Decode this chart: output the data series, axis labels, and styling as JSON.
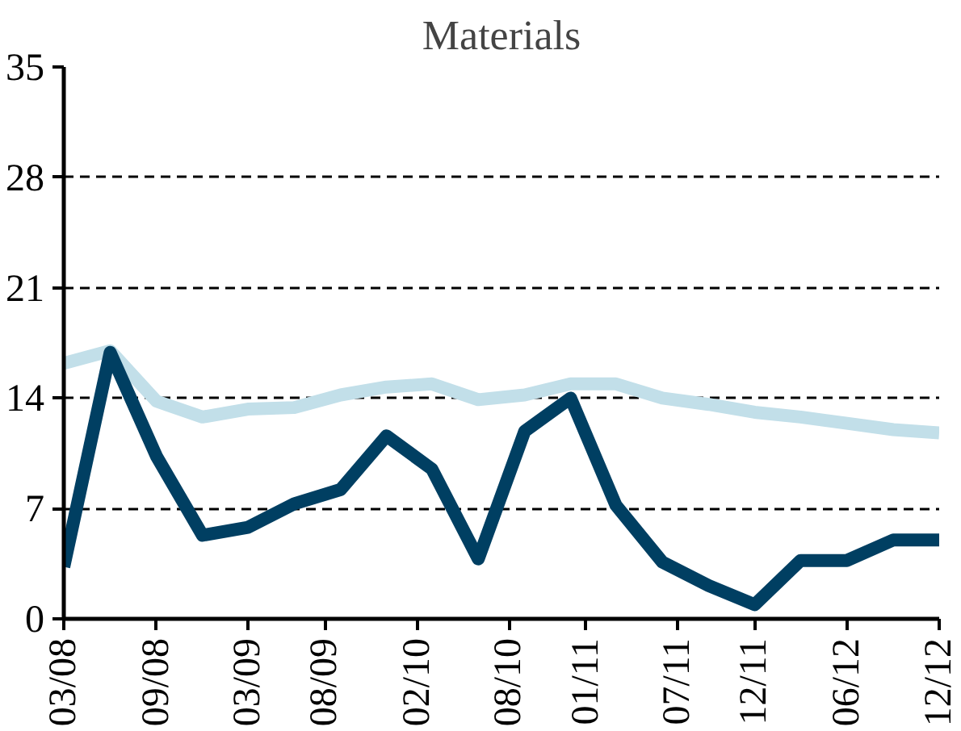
{
  "chart_data": {
    "type": "line",
    "title": "Materials",
    "x": [
      "2008-03",
      "2008-06",
      "2008-09",
      "2008-12",
      "2009-03",
      "2009-06",
      "2009-09",
      "2009-12",
      "2010-03",
      "2010-06",
      "2010-09",
      "2010-12",
      "2011-03",
      "2011-06",
      "2011-09",
      "2011-12",
      "2012-03",
      "2012-06",
      "2012-09",
      "2012-12"
    ],
    "series": [
      {
        "color": "#c2dfe9",
        "values": [
          16.2,
          17.0,
          13.8,
          12.8,
          13.3,
          13.4,
          14.2,
          14.7,
          14.9,
          13.9,
          14.2,
          14.9,
          14.9,
          14.0,
          13.6,
          13.1,
          12.8,
          12.4,
          12.0,
          11.8
        ]
      },
      {
        "color": "#003f62",
        "values": [
          3.3,
          16.9,
          10.3,
          5.3,
          5.8,
          7.3,
          8.2,
          11.6,
          9.5,
          3.8,
          11.9,
          14.0,
          7.2,
          3.6,
          2.1,
          0.9,
          3.7,
          3.7,
          5.0,
          5.0
        ]
      }
    ],
    "xlim": [
      "2008-03",
      "2012-12"
    ],
    "xticks": [
      {
        "value": "2008-03",
        "label": "03/08"
      },
      {
        "value": "2008-09",
        "label": "09/08"
      },
      {
        "value": "2009-03",
        "label": "03/09"
      },
      {
        "value": "2009-08",
        "label": "08/09"
      },
      {
        "value": "2010-02",
        "label": "02/10"
      },
      {
        "value": "2010-08",
        "label": "08/10"
      },
      {
        "value": "2011-01",
        "label": "01/11"
      },
      {
        "value": "2011-07",
        "label": "07/11"
      },
      {
        "value": "2011-12",
        "label": "12/11"
      },
      {
        "value": "2012-06",
        "label": "06/12"
      },
      {
        "value": "2012-12",
        "label": "12/12"
      }
    ],
    "ylim": [
      0,
      35
    ],
    "yticks": [
      0,
      7,
      14,
      21,
      28,
      35
    ],
    "grid": "y",
    "line_style": "solid",
    "marker": "none"
  }
}
